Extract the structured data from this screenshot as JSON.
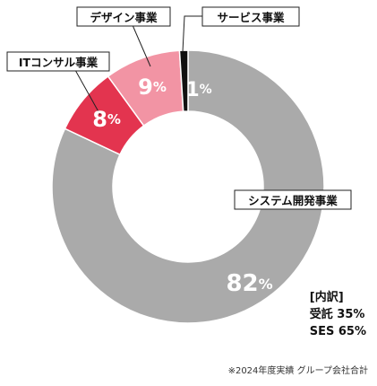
{
  "chart_data": {
    "type": "pie",
    "categories": [
      "システム開発事業",
      "ITコンサル事業",
      "デザイン事業",
      "サービス事業"
    ],
    "values": [
      82,
      8,
      9,
      1
    ],
    "unit": "%",
    "colors": [
      "#aaaaaa",
      "#e3344f",
      "#f294a4",
      "#111111"
    ],
    "donut": true
  },
  "breakdown": {
    "title": "[内訳]",
    "items": [
      "受託 35%",
      "SES 65%"
    ]
  },
  "footnote": "※2024年度実績 グループ会社合計"
}
